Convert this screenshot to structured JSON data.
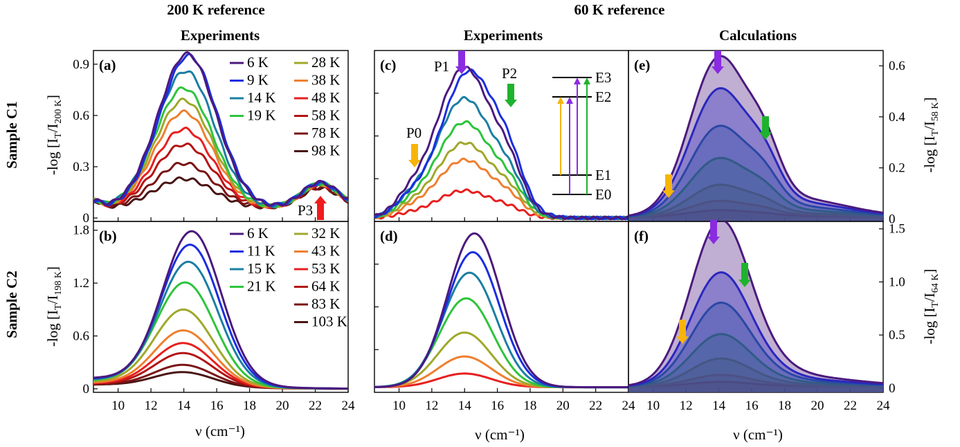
{
  "headers": {
    "left_top": "200 K reference",
    "right_top": "60 K reference",
    "left_sub": "Experiments",
    "mid_sub": "Experiments",
    "right_sub": "Calculations"
  },
  "row_labels": {
    "top": "Sample C1",
    "bottom": "Sample C2"
  },
  "x_axis_label": "ν (cm⁻¹)",
  "y_labels": {
    "a_prefix": "-log [I",
    "a_sub1": "T",
    "a_mid": "/I",
    "a_sub2": "200 K",
    "a_end": "]",
    "b_prefix": "-log [I",
    "b_sub1": "T",
    "b_mid": "/I",
    "b_sub2": "198 K",
    "b_end": "]",
    "e_prefix": "-log [I",
    "e_sub1": "T",
    "e_mid": "/I",
    "e_sub2": "58 K",
    "e_end": "]",
    "f_prefix": "-log [I",
    "f_sub1": "T",
    "f_mid": "/I",
    "f_sub2": "64 K",
    "f_end": "]"
  },
  "colors": [
    "#4b1a7e",
    "#1a2ee0",
    "#1a7fa3",
    "#2ec43c",
    "#9fa82a",
    "#ef7f2f",
    "#e81f1f",
    "#b31414",
    "#7a1414",
    "#4a1414"
  ],
  "markers": {
    "p0": "P0",
    "p1": "P1",
    "p2": "P2",
    "p3": "P3",
    "e0": "E0",
    "e1": "E1",
    "e2": "E2",
    "e3": "E3",
    "arrow_orange": "#f7b50a",
    "arrow_purple": "#8a2be2",
    "arrow_green": "#1fb22e",
    "arrow_red": "#ee1c1c"
  },
  "chart_data": [
    {
      "panel": "(a)",
      "type": "line",
      "xlabel": "ν (cm⁻¹)",
      "ylabel": "-log [IT/I200 K]",
      "xlim": [
        8.5,
        24
      ],
      "ylim": [
        -0.02,
        0.98
      ],
      "xticks": [
        10,
        12,
        14,
        16,
        18,
        20,
        22,
        24
      ],
      "yticks": [
        0,
        0.3,
        0.6,
        0.9
      ],
      "ytick_labels": [
        "0",
        "0.3",
        "0.6",
        "0.9"
      ],
      "series": [
        {
          "name": "6 K",
          "peak": 0.9,
          "center": 14.2
        },
        {
          "name": "9 K",
          "peak": 0.89,
          "center": 14.3
        },
        {
          "name": "14 K",
          "peak": 0.8,
          "center": 14.1
        },
        {
          "name": "19 K",
          "peak": 0.7,
          "center": 14.0
        },
        {
          "name": "28 K",
          "peak": 0.63,
          "center": 14.0
        },
        {
          "name": "38 K",
          "peak": 0.56,
          "center": 14.0
        },
        {
          "name": "48 K",
          "peak": 0.46,
          "center": 14.0
        },
        {
          "name": "58 K",
          "peak": 0.37,
          "center": 14.0
        },
        {
          "name": "78 K",
          "peak": 0.26,
          "center": 14.0
        },
        {
          "name": "98 K",
          "peak": 0.17,
          "center": 14.0
        }
      ]
    },
    {
      "panel": "(b)",
      "type": "line",
      "xlabel": "ν (cm⁻¹)",
      "ylabel": "-log [IT/I198 K]",
      "xlim": [
        8.5,
        24
      ],
      "ylim": [
        -0.04,
        1.9
      ],
      "xticks": [
        10,
        12,
        14,
        16,
        18,
        20,
        22,
        24
      ],
      "yticks": [
        0,
        0.6,
        1.2,
        1.8
      ],
      "ytick_labels": [
        "0",
        "0.6",
        "1.2",
        "1.8"
      ],
      "series": [
        {
          "name": "6 K",
          "peak": 1.72,
          "center": 14.5
        },
        {
          "name": "11 K",
          "peak": 1.57,
          "center": 14.4
        },
        {
          "name": "15 K",
          "peak": 1.38,
          "center": 14.3
        },
        {
          "name": "21 K",
          "peak": 1.15,
          "center": 14.1
        },
        {
          "name": "32 K",
          "peak": 0.85,
          "center": 14.0
        },
        {
          "name": "43 K",
          "peak": 0.62,
          "center": 14.0
        },
        {
          "name": "53 K",
          "peak": 0.48,
          "center": 14.0
        },
        {
          "name": "64 K",
          "peak": 0.37,
          "center": 14.0
        },
        {
          "name": "83 K",
          "peak": 0.24,
          "center": 14.0
        },
        {
          "name": "103 K",
          "peak": 0.16,
          "center": 14.0
        }
      ]
    },
    {
      "panel": "(c)",
      "type": "line",
      "xlabel": "ν (cm⁻¹)",
      "xlim": [
        8.5,
        24
      ],
      "ylim": [
        0,
        1
      ],
      "xticks": [
        10,
        12,
        14,
        16,
        18,
        20,
        22,
        24
      ],
      "series": [
        {
          "peak": 0.88,
          "center": 14.0
        },
        {
          "peak": 0.86,
          "center": 14.3
        },
        {
          "peak": 0.7,
          "center": 14.0
        },
        {
          "peak": 0.56,
          "center": 14.0
        },
        {
          "peak": 0.44,
          "center": 14.0
        },
        {
          "peak": 0.34,
          "center": 14.0
        },
        {
          "peak": 0.16,
          "center": 14.0
        }
      ]
    },
    {
      "panel": "(d)",
      "type": "line",
      "xlabel": "ν (cm⁻¹)",
      "xlim": [
        8.5,
        24
      ],
      "ylim": [
        0,
        1
      ],
      "xticks": [
        10,
        12,
        14,
        16,
        18,
        20,
        22,
        24
      ],
      "series": [
        {
          "peak": 0.9,
          "center": 14.6
        },
        {
          "peak": 0.79,
          "center": 14.5
        },
        {
          "peak": 0.67,
          "center": 14.3
        },
        {
          "peak": 0.52,
          "center": 14.1
        },
        {
          "peak": 0.32,
          "center": 14.0
        },
        {
          "peak": 0.18,
          "center": 14.0
        },
        {
          "peak": 0.08,
          "center": 14.0
        }
      ]
    },
    {
      "panel": "(e)",
      "type": "area",
      "xlabel": "ν (cm⁻¹)",
      "ylabel": "-log [IT/I58 K]",
      "xlim": [
        8.5,
        24
      ],
      "ylim": [
        -0.01,
        0.66
      ],
      "xticks": [
        10,
        12,
        14,
        16,
        18,
        20,
        22,
        24
      ],
      "yticks": [
        0,
        0.2,
        0.4,
        0.6
      ],
      "ytick_labels": [
        "0",
        "0.2",
        "0.4",
        "0.6"
      ],
      "series": [
        {
          "peak": 0.6,
          "center": 14.0
        },
        {
          "peak": 0.48,
          "center": 14.0
        },
        {
          "peak": 0.34,
          "center": 14.0
        },
        {
          "peak": 0.22,
          "center": 14.0
        },
        {
          "peak": 0.12,
          "center": 14.0
        },
        {
          "peak": 0.06,
          "center": 14.0
        },
        {
          "peak": 0.025,
          "center": 14.0
        }
      ]
    },
    {
      "panel": "(f)",
      "type": "area",
      "xlabel": "ν (cm⁻¹)",
      "ylabel": "-log [IT/I64 K]",
      "xlim": [
        8.5,
        24
      ],
      "ylim": [
        -0.04,
        1.57
      ],
      "xticks": [
        10,
        12,
        14,
        16,
        18,
        20,
        22,
        24
      ],
      "yticks": [
        0,
        0.5,
        1.0,
        1.5
      ],
      "ytick_labels": [
        "0",
        "0.5",
        "1.0",
        "1.5"
      ],
      "series": [
        {
          "peak": 1.43,
          "center": 14.0
        },
        {
          "peak": 0.98,
          "center": 14.0
        },
        {
          "peak": 0.72,
          "center": 14.0
        },
        {
          "peak": 0.45,
          "center": 14.0
        },
        {
          "peak": 0.24,
          "center": 14.0
        },
        {
          "peak": 0.1,
          "center": 14.0
        },
        {
          "peak": 0.04,
          "center": 14.0
        }
      ]
    }
  ]
}
